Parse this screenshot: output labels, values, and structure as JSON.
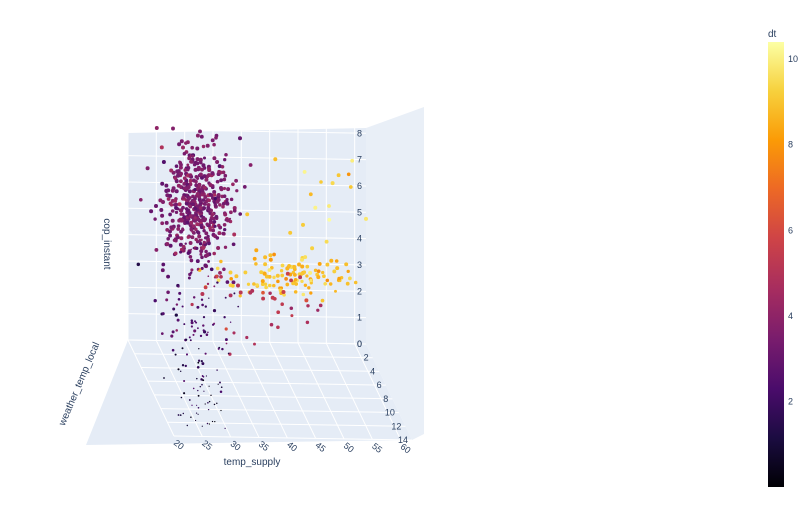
{
  "chart_data": {
    "type": "scatter",
    "title": "",
    "axes": {
      "x": {
        "label": "temp_supply",
        "range": [
          20,
          62
        ],
        "ticks": [
          "60",
          "55",
          "50",
          "45",
          "40",
          "35",
          "30",
          "25",
          "20"
        ]
      },
      "y": {
        "label": "weather_temp_local",
        "range": [
          0,
          14
        ],
        "ticks": [
          "0",
          "2",
          "4",
          "6",
          "8",
          "10",
          "12",
          "14"
        ]
      },
      "z": {
        "label": "cop_instant",
        "range": [
          0,
          8.2
        ],
        "ticks": [
          "0",
          "1",
          "2",
          "3",
          "4",
          "5",
          "6",
          "7",
          "8"
        ]
      }
    },
    "color": {
      "label": "dt",
      "range": [
        0,
        10.4
      ],
      "ticks": [
        "2",
        "4",
        "6",
        "8",
        "10"
      ],
      "colorscale": "Inferno"
    },
    "clusters": [
      {
        "name": "",
        "center": {
          "x": 31.5,
          "y": 1.0,
          "z": 5.3
        },
        "spread": {
          "x": 3.0,
          "y": 1.5,
          "z": 1.1
        },
        "dt": 3.6,
        "count": 450
      },
      {
        "name": "",
        "center": {
          "x": 48.0,
          "y": 1.5,
          "z": 3.0
        },
        "spread": {
          "x": 6.0,
          "y": 1.2,
          "z": 0.35
        },
        "dt": 8.8,
        "count": 110
      },
      {
        "name": "",
        "center": {
          "x": 52.0,
          "y": 0.5,
          "z": 5.5
        },
        "spread": {
          "x": 5.0,
          "y": 1.0,
          "z": 1.8
        },
        "dt": 9.4,
        "count": 22
      },
      {
        "name": "",
        "center": {
          "x": 42.0,
          "y": 2.0,
          "z": 1.8
        },
        "spread": {
          "x": 6.0,
          "y": 1.5,
          "z": 0.6
        },
        "dt": 5.2,
        "count": 35
      },
      {
        "name": "",
        "center": {
          "x": 27.5,
          "y": 8.0,
          "z": 2.5
        },
        "spread": {
          "x": 3.5,
          "y": 3.0,
          "z": 1.2
        },
        "dt": 2.4,
        "count": 80
      },
      {
        "name": "",
        "center": {
          "x": 25.5,
          "y": 13.0,
          "z": 1.0
        },
        "spread": {
          "x": 2.0,
          "y": 1.5,
          "z": 0.8
        },
        "dt": 0.9,
        "count": 45
      },
      {
        "name": "",
        "center": {
          "x": 29.0,
          "y": 5.0,
          "z": 6.0
        },
        "spread": {
          "x": 2.5,
          "y": 3.0,
          "z": 1.5
        },
        "dt": 3.5,
        "count": 60
      }
    ]
  }
}
